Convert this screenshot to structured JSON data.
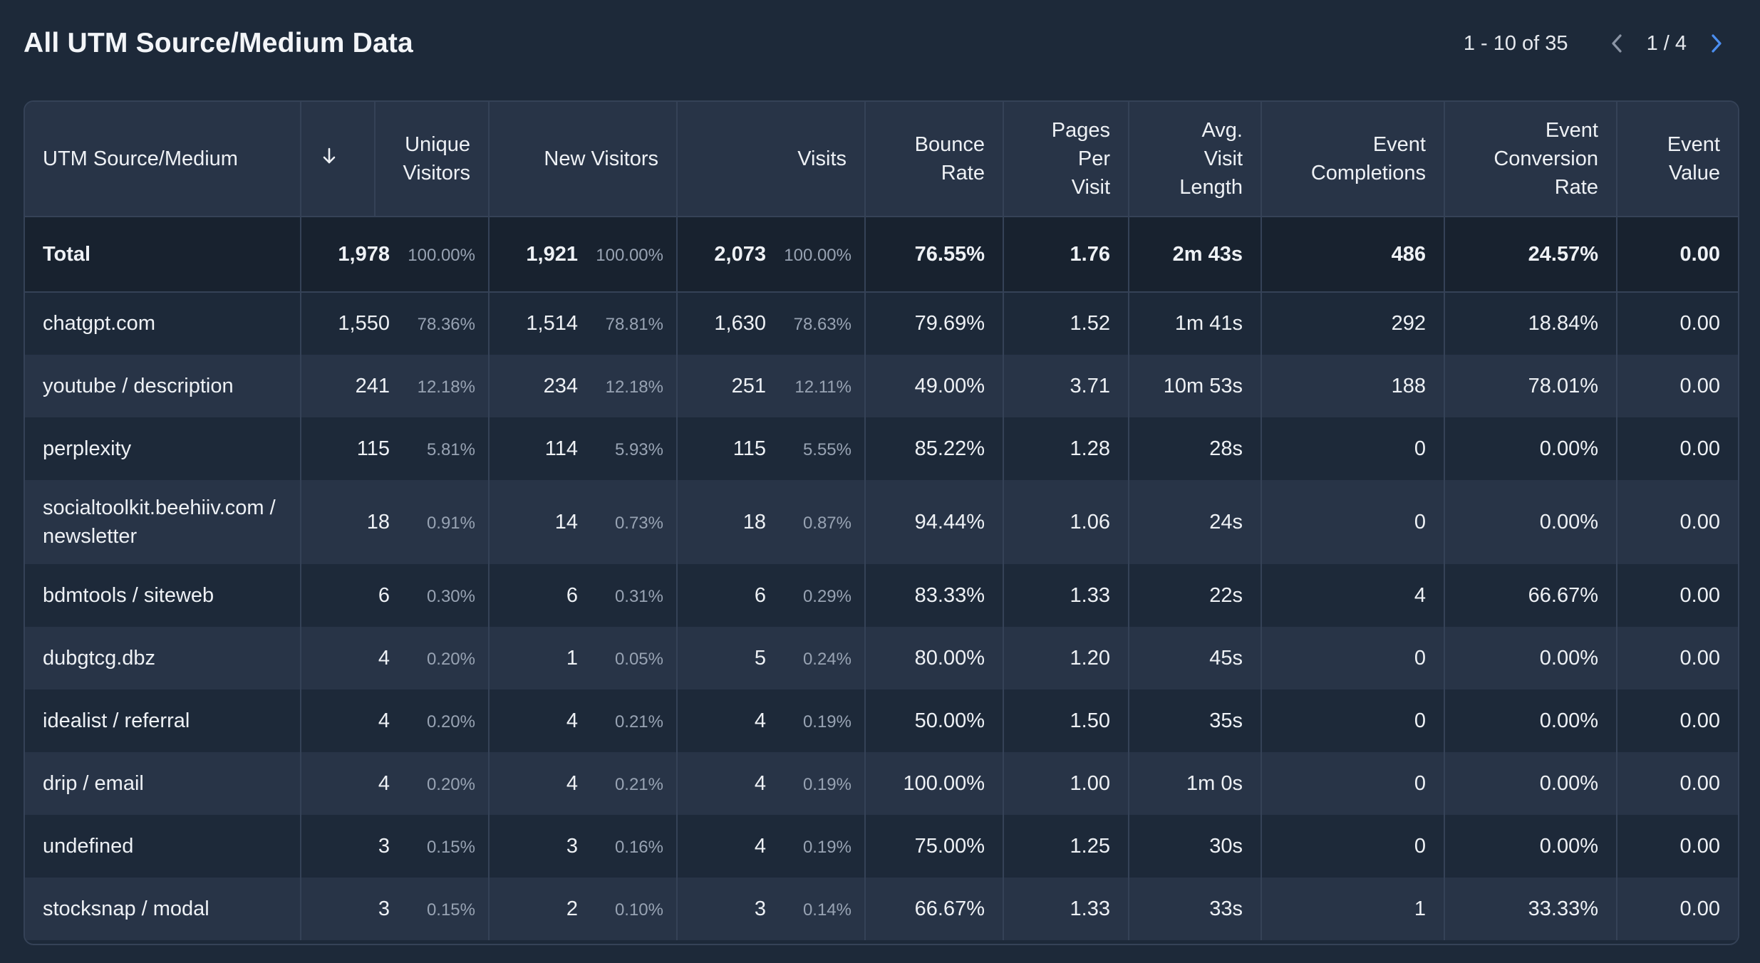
{
  "title": "All UTM Source/Medium Data",
  "pagination": {
    "range": "1 - 10 of 35",
    "page": "1 / 4"
  },
  "colors": {
    "background": "#1d2939",
    "header_bg": "#283447",
    "total_bg": "#18222f",
    "border": "#354257",
    "accent": "#4b8ef0"
  },
  "icons": {
    "prev": "chevron-left-icon",
    "next": "chevron-right-icon",
    "sort": "arrow-down-icon"
  },
  "columns": {
    "source": "UTM Source/Medium",
    "unique_visitors": [
      "Unique",
      "Visitors"
    ],
    "new_visitors": "New Visitors",
    "visits": "Visits",
    "bounce_rate": [
      "Bounce",
      "Rate"
    ],
    "pages_per_visit": [
      "Pages",
      "Per",
      "Visit"
    ],
    "avg_visit_length": [
      "Avg.",
      "Visit",
      "Length"
    ],
    "event_completions": [
      "Event",
      "Completions"
    ],
    "event_conversion_rate": [
      "Event",
      "Conversion",
      "Rate"
    ],
    "event_value": [
      "Event",
      "Value"
    ]
  },
  "total": {
    "label": "Total",
    "unique_visitors": "1,978",
    "unique_pct": "100.00%",
    "new_visitors": "1,921",
    "new_pct": "100.00%",
    "visits": "2,073",
    "visits_pct": "100.00%",
    "bounce_rate": "76.55%",
    "pages_per_visit": "1.76",
    "avg_visit_length": "2m 43s",
    "event_completions": "486",
    "event_conversion_rate": "24.57%",
    "event_value": "0.00"
  },
  "rows": [
    {
      "source": "chatgpt.com",
      "unique_visitors": "1,550",
      "unique_pct": "78.36%",
      "new_visitors": "1,514",
      "new_pct": "78.81%",
      "visits": "1,630",
      "visits_pct": "78.63%",
      "bounce_rate": "79.69%",
      "pages_per_visit": "1.52",
      "avg_visit_length": "1m 41s",
      "event_completions": "292",
      "event_conversion_rate": "18.84%",
      "event_value": "0.00"
    },
    {
      "source": "youtube / description",
      "unique_visitors": "241",
      "unique_pct": "12.18%",
      "new_visitors": "234",
      "new_pct": "12.18%",
      "visits": "251",
      "visits_pct": "12.11%",
      "bounce_rate": "49.00%",
      "pages_per_visit": "3.71",
      "avg_visit_length": "10m 53s",
      "event_completions": "188",
      "event_conversion_rate": "78.01%",
      "event_value": "0.00"
    },
    {
      "source": "perplexity",
      "unique_visitors": "115",
      "unique_pct": "5.81%",
      "new_visitors": "114",
      "new_pct": "5.93%",
      "visits": "115",
      "visits_pct": "5.55%",
      "bounce_rate": "85.22%",
      "pages_per_visit": "1.28",
      "avg_visit_length": "28s",
      "event_completions": "0",
      "event_conversion_rate": "0.00%",
      "event_value": "0.00"
    },
    {
      "source": "socialtoolkit.beehiiv.com / newsletter",
      "unique_visitors": "18",
      "unique_pct": "0.91%",
      "new_visitors": "14",
      "new_pct": "0.73%",
      "visits": "18",
      "visits_pct": "0.87%",
      "bounce_rate": "94.44%",
      "pages_per_visit": "1.06",
      "avg_visit_length": "24s",
      "event_completions": "0",
      "event_conversion_rate": "0.00%",
      "event_value": "0.00"
    },
    {
      "source": "bdmtools / siteweb",
      "unique_visitors": "6",
      "unique_pct": "0.30%",
      "new_visitors": "6",
      "new_pct": "0.31%",
      "visits": "6",
      "visits_pct": "0.29%",
      "bounce_rate": "83.33%",
      "pages_per_visit": "1.33",
      "avg_visit_length": "22s",
      "event_completions": "4",
      "event_conversion_rate": "66.67%",
      "event_value": "0.00"
    },
    {
      "source": "dubgtcg.dbz",
      "unique_visitors": "4",
      "unique_pct": "0.20%",
      "new_visitors": "1",
      "new_pct": "0.05%",
      "visits": "5",
      "visits_pct": "0.24%",
      "bounce_rate": "80.00%",
      "pages_per_visit": "1.20",
      "avg_visit_length": "45s",
      "event_completions": "0",
      "event_conversion_rate": "0.00%",
      "event_value": "0.00"
    },
    {
      "source": "idealist / referral",
      "unique_visitors": "4",
      "unique_pct": "0.20%",
      "new_visitors": "4",
      "new_pct": "0.21%",
      "visits": "4",
      "visits_pct": "0.19%",
      "bounce_rate": "50.00%",
      "pages_per_visit": "1.50",
      "avg_visit_length": "35s",
      "event_completions": "0",
      "event_conversion_rate": "0.00%",
      "event_value": "0.00"
    },
    {
      "source": "drip / email",
      "unique_visitors": "4",
      "unique_pct": "0.20%",
      "new_visitors": "4",
      "new_pct": "0.21%",
      "visits": "4",
      "visits_pct": "0.19%",
      "bounce_rate": "100.00%",
      "pages_per_visit": "1.00",
      "avg_visit_length": "1m 0s",
      "event_completions": "0",
      "event_conversion_rate": "0.00%",
      "event_value": "0.00"
    },
    {
      "source": "undefined",
      "unique_visitors": "3",
      "unique_pct": "0.15%",
      "new_visitors": "3",
      "new_pct": "0.16%",
      "visits": "4",
      "visits_pct": "0.19%",
      "bounce_rate": "75.00%",
      "pages_per_visit": "1.25",
      "avg_visit_length": "30s",
      "event_completions": "0",
      "event_conversion_rate": "0.00%",
      "event_value": "0.00"
    },
    {
      "source": "stocksnap / modal",
      "unique_visitors": "3",
      "unique_pct": "0.15%",
      "new_visitors": "2",
      "new_pct": "0.10%",
      "visits": "3",
      "visits_pct": "0.14%",
      "bounce_rate": "66.67%",
      "pages_per_visit": "1.33",
      "avg_visit_length": "33s",
      "event_completions": "1",
      "event_conversion_rate": "33.33%",
      "event_value": "0.00"
    }
  ]
}
